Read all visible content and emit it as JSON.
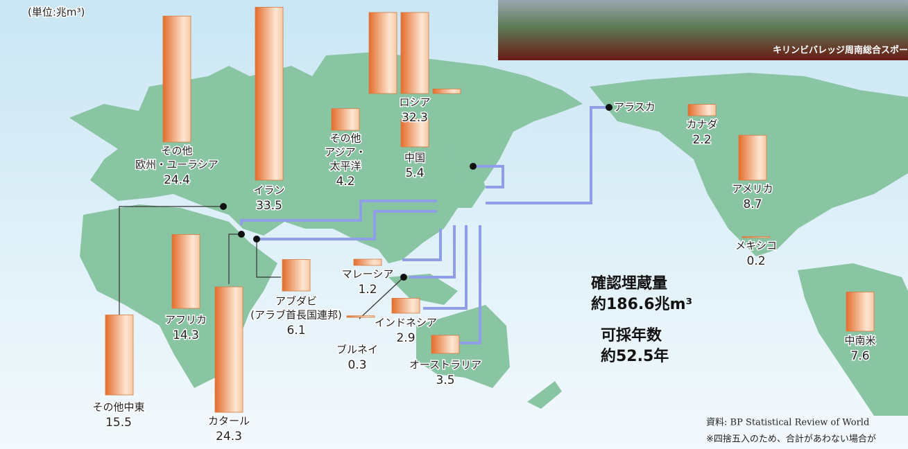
{
  "header": {
    "unit": "(単位:兆m³)"
  },
  "photo": {
    "caption": "キリンビバレッジ周南総合スポー"
  },
  "regions": [
    {
      "label": [
        "その他",
        "欧州・ユーラシア"
      ],
      "value": 24.4
    },
    {
      "label": [
        "イラン"
      ],
      "value": 33.5
    },
    {
      "label": [
        "その他中東"
      ],
      "value": 15.5
    },
    {
      "label": [
        "アフリカ"
      ],
      "value": 14.3
    },
    {
      "label": [
        "カタール"
      ],
      "value": 24.3
    },
    {
      "label": [
        "アブダビ",
        "(アラブ首長国連邦)"
      ],
      "value": 6.1
    },
    {
      "label": [
        "その他",
        "アジア・",
        "太平洋"
      ],
      "value": 4.2
    },
    {
      "label": [
        "ロシア"
      ],
      "value": 32.3
    },
    {
      "label": [
        "中国"
      ],
      "value": 5.4
    },
    {
      "label": [
        "マレーシア"
      ],
      "value": 1.2
    },
    {
      "label": [
        "ブルネイ"
      ],
      "value": 0.3
    },
    {
      "label": [
        "インドネシア"
      ],
      "value": 2.9
    },
    {
      "label": [
        "オーストラリア"
      ],
      "value": 3.5
    },
    {
      "label": [
        "カナダ"
      ],
      "value": 2.2
    },
    {
      "label": [
        "アメリカ"
      ],
      "value": 8.7
    },
    {
      "label": [
        "メキシコ"
      ],
      "value": 0.2
    },
    {
      "label": [
        "中南米"
      ],
      "value": 7.6
    }
  ],
  "alaska": "アラスカ",
  "summary": {
    "reserves_label": "確認埋蔵量",
    "reserves": "約186.6兆m³",
    "years_label": "可採年数",
    "years": "約52.5年"
  },
  "source": [
    "資料: BP Statistical Review of World",
    "※四捨五入のため、合計があわない場合が"
  ]
}
